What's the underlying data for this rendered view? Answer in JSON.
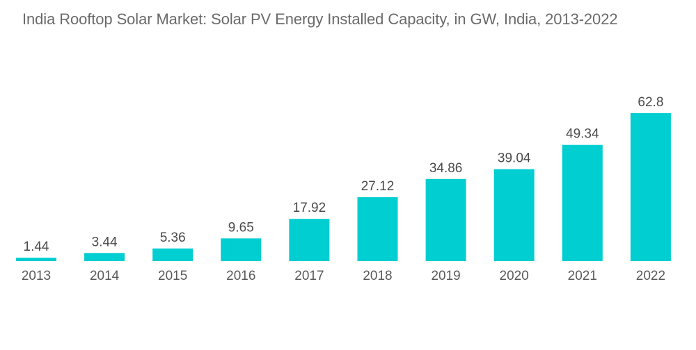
{
  "chart_data": {
    "type": "bar",
    "title": "India Rooftop Solar Market: Solar PV Energy Installed Capacity, in GW, India, 2013-2022",
    "xlabel": "",
    "ylabel": "",
    "categories": [
      "2013",
      "2014",
      "2015",
      "2016",
      "2017",
      "2018",
      "2019",
      "2020",
      "2021",
      "2022"
    ],
    "values": [
      1.44,
      3.44,
      5.36,
      9.65,
      17.92,
      27.12,
      34.86,
      39.04,
      49.34,
      62.8
    ],
    "data_labels": [
      "1.44",
      "3.44",
      "5.36",
      "9.65",
      "17.92",
      "27.12",
      "34.86",
      "39.04",
      "49.34",
      "62.8"
    ],
    "ylim": [
      0,
      62.8
    ],
    "grid": false,
    "legend": "none",
    "bar_color": "#00CED1"
  }
}
